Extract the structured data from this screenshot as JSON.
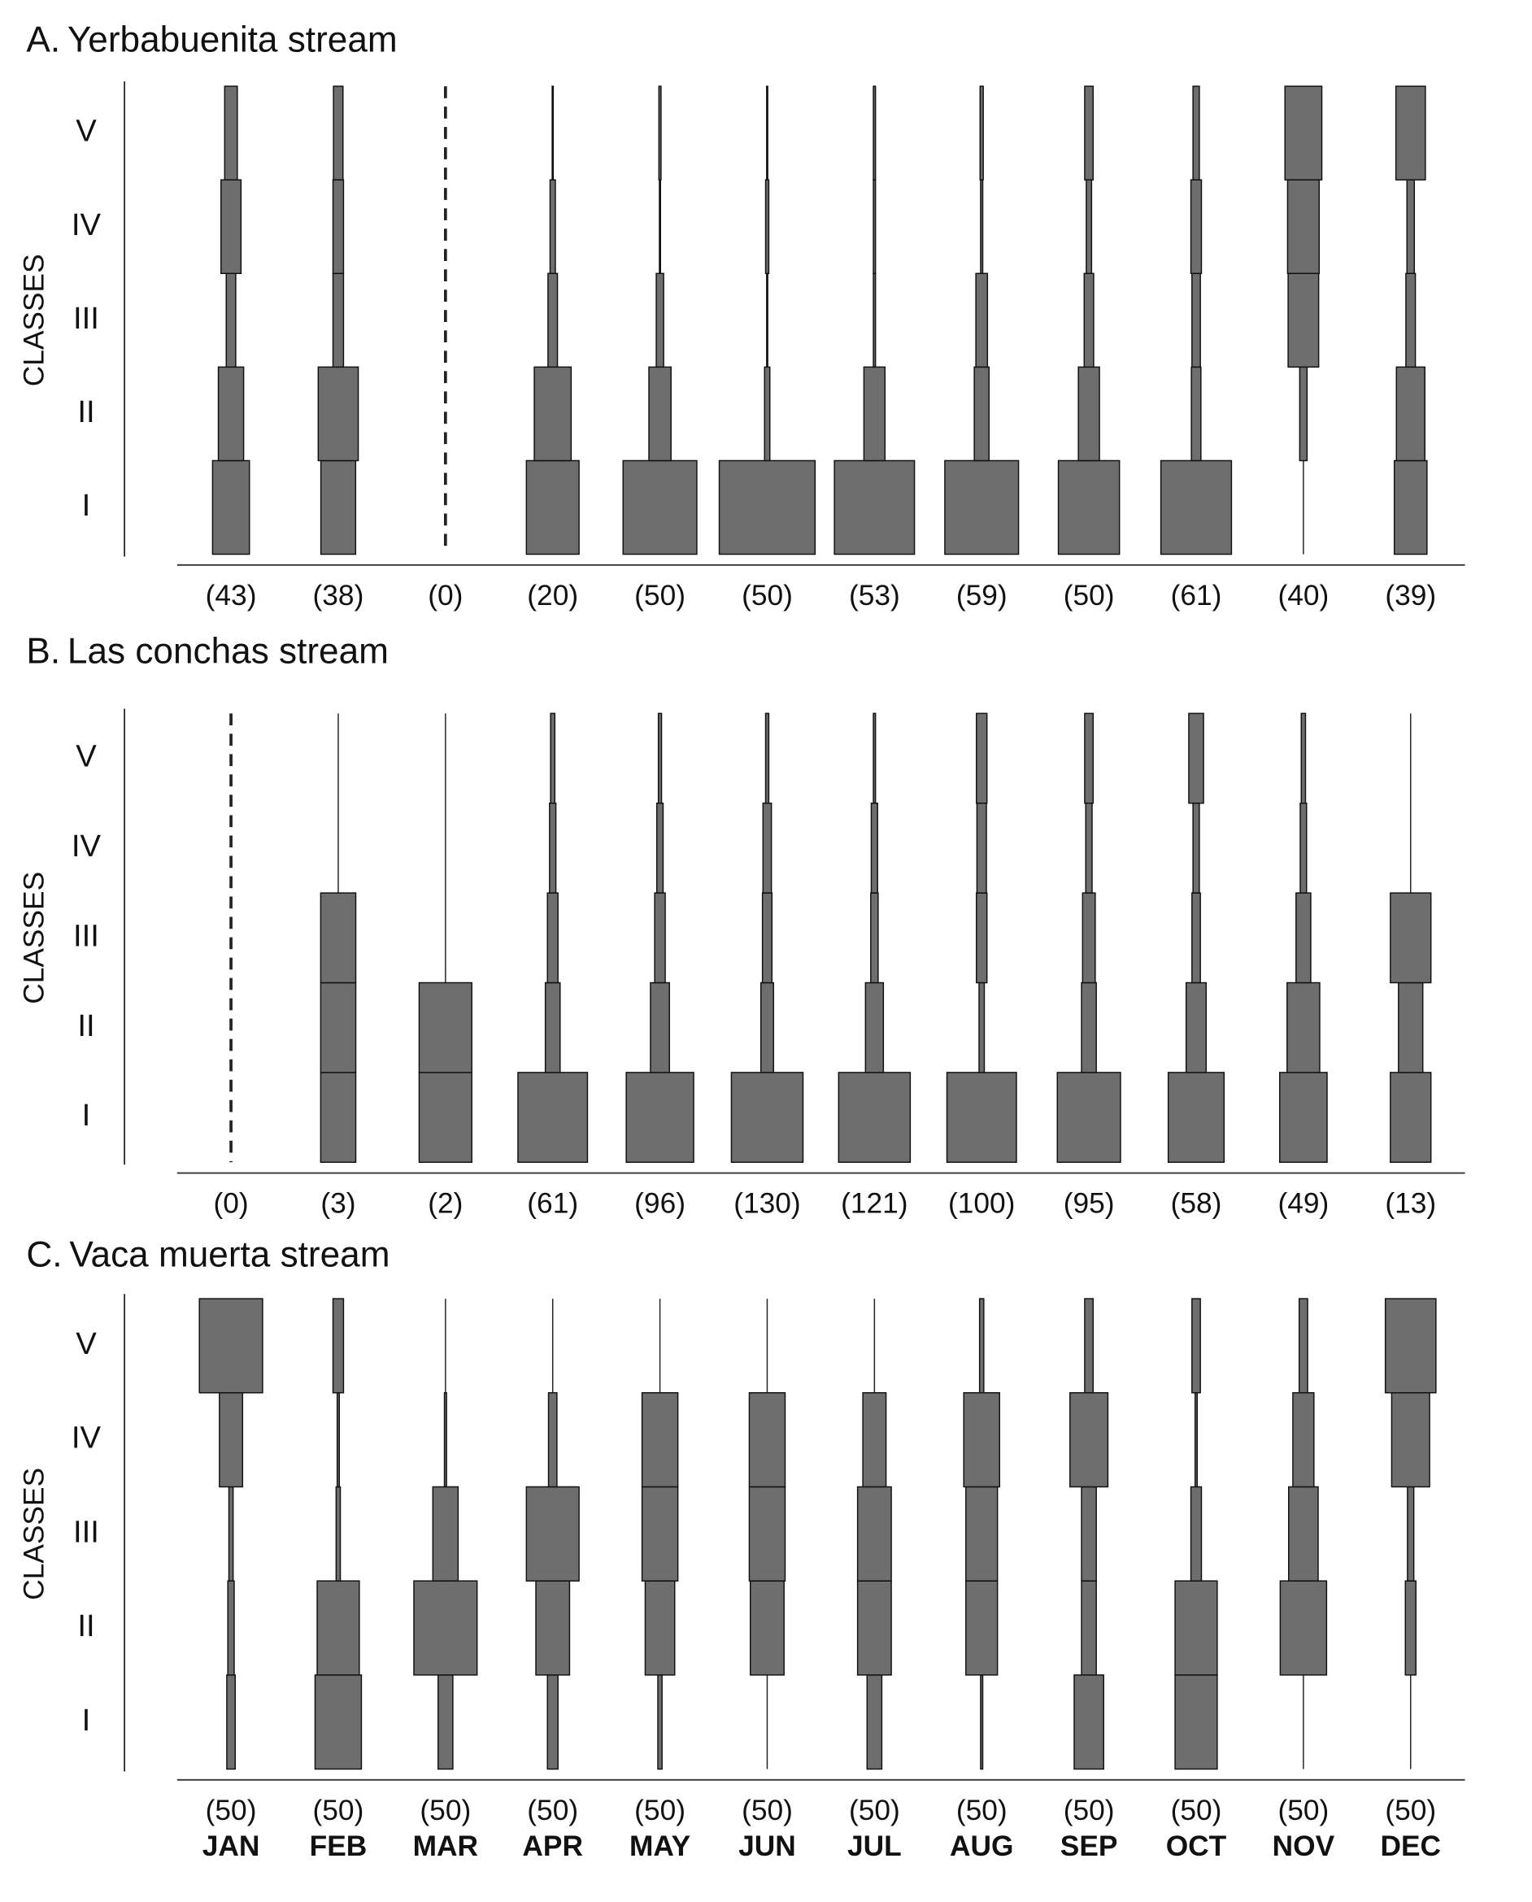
{
  "chart_data": [
    {
      "type": "kite",
      "panel_label": "A.",
      "title": "Yerbabuenita stream",
      "y_label": "CLASSES",
      "color": "#6e6e6e",
      "n_labels": [
        "(43)",
        "(38)",
        "(0)",
        "(20)",
        "(50)",
        "(50)",
        "(53)",
        "(59)",
        "(50)",
        "(61)",
        "(40)",
        "(39)"
      ],
      "series": [
        {
          "name": "I",
          "values": [
            35,
            33,
            0,
            50,
            70,
            91,
            76,
            70,
            58,
            67,
            0,
            31
          ]
        },
        {
          "name": "II",
          "values": [
            24,
            38,
            0,
            35,
            21,
            5,
            20,
            14,
            20,
            9,
            7,
            27
          ]
        },
        {
          "name": "III",
          "values": [
            9,
            10,
            0,
            9,
            7,
            1,
            2,
            11,
            9,
            8,
            29,
            9
          ]
        },
        {
          "name": "IV",
          "values": [
            19,
            10,
            0,
            5,
            1,
            3,
            2,
            2,
            5,
            10,
            30,
            7
          ]
        },
        {
          "name": "V",
          "values": [
            12,
            9,
            0,
            1,
            2,
            1,
            2,
            3,
            8,
            6,
            35,
            28
          ]
        }
      ]
    },
    {
      "type": "kite",
      "panel_label": "B.",
      "title": "Las conchas stream",
      "y_label": "CLASSES",
      "color": "#6e6e6e",
      "n_labels": [
        "(0)",
        "(3)",
        "(2)",
        "(61)",
        "(96)",
        "(130)",
        "(121)",
        "(100)",
        "(95)",
        "(58)",
        "(49)",
        "(13)"
      ],
      "series": [
        {
          "name": "I",
          "values": [
            0,
            33.3,
            50,
            66,
            64,
            68,
            68,
            66,
            60,
            53,
            45,
            38.5
          ]
        },
        {
          "name": "II",
          "values": [
            0,
            33.3,
            50,
            14,
            18,
            12,
            17,
            5,
            14,
            19,
            31,
            23.1
          ]
        },
        {
          "name": "III",
          "values": [
            0,
            33.3,
            0,
            10,
            10,
            9,
            7,
            10,
            12,
            8,
            14,
            38.5
          ]
        },
        {
          "name": "IV",
          "values": [
            0,
            0,
            0,
            6,
            6,
            8,
            6,
            9,
            6,
            6,
            6,
            0
          ]
        },
        {
          "name": "V",
          "values": [
            0,
            0,
            0,
            4,
            3,
            3,
            2,
            10,
            8,
            14,
            4,
            0
          ]
        }
      ]
    },
    {
      "type": "kite",
      "panel_label": "C.",
      "title": "Vaca muerta stream",
      "y_label": "CLASSES",
      "color": "#6e6e6e",
      "n_labels": [
        "(50)",
        "(50)",
        "(50)",
        "(50)",
        "(50)",
        "(50)",
        "(50)",
        "(50)",
        "(50)",
        "(50)",
        "(50)",
        "(50)"
      ],
      "categories": [
        "JAN",
        "FEB",
        "MAR",
        "APR",
        "MAY",
        "JUN",
        "JUL",
        "AUG",
        "SEP",
        "OCT",
        "NOV",
        "DEC"
      ],
      "series": [
        {
          "name": "I",
          "values": [
            8,
            44,
            14,
            10,
            4,
            0,
            14,
            2,
            28,
            40,
            0,
            0
          ]
        },
        {
          "name": "II",
          "values": [
            6,
            40,
            60,
            32,
            28,
            32,
            32,
            30,
            14,
            40,
            44,
            10
          ]
        },
        {
          "name": "III",
          "values": [
            4,
            4,
            24,
            50,
            34,
            34,
            32,
            30,
            14,
            10,
            28,
            6
          ]
        },
        {
          "name": "IV",
          "values": [
            22,
            2,
            2,
            8,
            34,
            34,
            22,
            34,
            36,
            2,
            20,
            36
          ]
        },
        {
          "name": "V",
          "values": [
            60,
            10,
            0,
            0,
            0,
            0,
            0,
            4,
            8,
            8,
            8,
            48
          ]
        }
      ]
    }
  ]
}
